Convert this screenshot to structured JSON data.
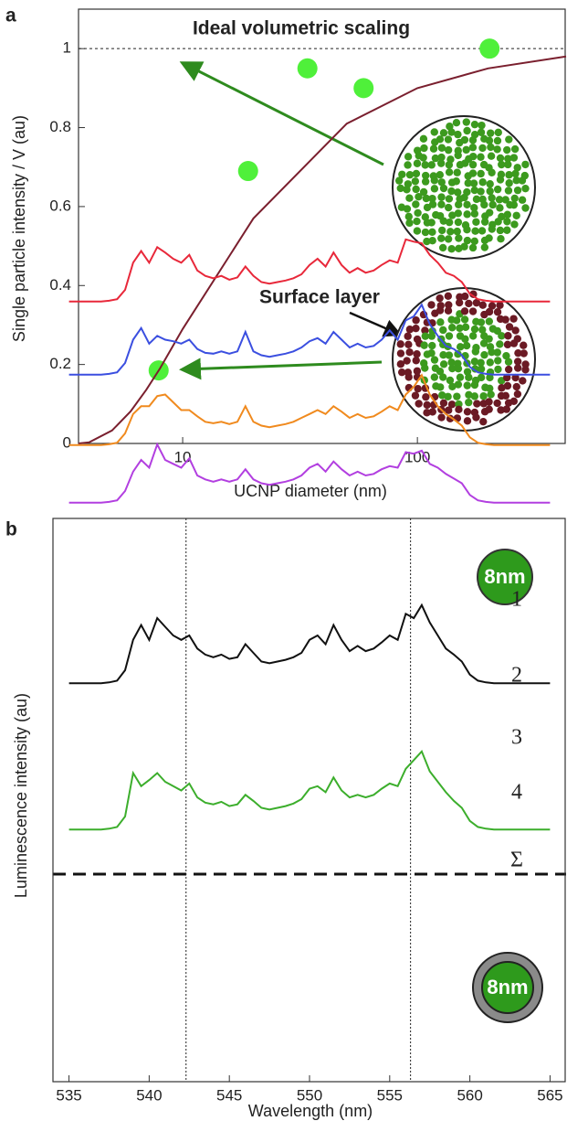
{
  "chart_data": [
    {
      "type": "scatter",
      "panel_label": "a",
      "x_label": "UCNP diameter (nm)",
      "y_label": "Single particle intensity / V (au)",
      "xlog": true,
      "xlim": [
        3.6,
        430
      ],
      "xticks": [
        10,
        100
      ],
      "ylim": [
        0,
        1.1
      ],
      "yticks": [
        0,
        0.2,
        0.4,
        0.6,
        0.8,
        1
      ],
      "reference_y": 1,
      "annotations": [
        "Ideal volumetric scaling",
        "Surface layer"
      ],
      "series": [
        {
          "type": "scatter",
          "color": "#4ff03a",
          "x": [
            7.9,
            19,
            34,
            59,
            203
          ],
          "values": [
            0.185,
            0.69,
            0.95,
            0.9,
            1.0
          ]
        },
        {
          "type": "line",
          "color": "#7a1f2e",
          "x": [
            3.6,
            4,
            5,
            6,
            7,
            8,
            10,
            20,
            50,
            100,
            200,
            430
          ],
          "values": [
            0,
            0.003,
            0.033,
            0.081,
            0.136,
            0.19,
            0.29,
            0.57,
            0.81,
            0.9,
            0.95,
            0.98
          ]
        }
      ]
    },
    {
      "type": "line",
      "panel_label": "b",
      "x_label": "Wavelength (nm)",
      "y_label": "Luminescence intensity (au)",
      "xlim": [
        534,
        566
      ],
      "xticks": [
        535,
        540,
        545,
        550,
        555,
        560,
        565
      ],
      "reference_x": [
        542.3,
        556.3
      ],
      "annotations": [
        "8nm",
        "8nm"
      ],
      "x": [
        535,
        535.5,
        536,
        536.5,
        537,
        537.5,
        538,
        538.5,
        539,
        539.5,
        540,
        540.5,
        541,
        541.5,
        542,
        542.5,
        543,
        543.5,
        544,
        544.5,
        545,
        545.5,
        546,
        546.5,
        547,
        547.5,
        548,
        548.5,
        549,
        549.5,
        550,
        550.5,
        551,
        551.5,
        552,
        552.5,
        553,
        553.5,
        554,
        554.5,
        555,
        555.5,
        556,
        556.5,
        557,
        557.5,
        558,
        558.5,
        559,
        559.5,
        560,
        560.5,
        561,
        561.5,
        562,
        562.5,
        563,
        563.5,
        564,
        564.5,
        565
      ],
      "series": [
        {
          "name": "1",
          "color": "#e8283a",
          "values": [
            0.05,
            0.05,
            0.05,
            0.05,
            0.05,
            0.06,
            0.08,
            0.2,
            0.55,
            0.7,
            0.55,
            0.75,
            0.68,
            0.6,
            0.55,
            0.65,
            0.45,
            0.38,
            0.35,
            0.38,
            0.33,
            0.36,
            0.5,
            0.38,
            0.3,
            0.28,
            0.3,
            0.32,
            0.35,
            0.4,
            0.52,
            0.6,
            0.5,
            0.68,
            0.52,
            0.42,
            0.48,
            0.42,
            0.45,
            0.52,
            0.58,
            0.55,
            0.85,
            0.82,
            0.8,
            0.65,
            0.55,
            0.42,
            0.38,
            0.3,
            0.15,
            0.08,
            0.06,
            0.05,
            0.05,
            0.05,
            0.05,
            0.05,
            0.05,
            0.05,
            0.05
          ]
        },
        {
          "name": "2",
          "color": "#3b4fe0",
          "values": [
            0.05,
            0.05,
            0.05,
            0.05,
            0.05,
            0.06,
            0.08,
            0.2,
            0.5,
            0.65,
            0.45,
            0.55,
            0.5,
            0.48,
            0.45,
            0.5,
            0.38,
            0.33,
            0.32,
            0.35,
            0.32,
            0.35,
            0.6,
            0.35,
            0.3,
            0.28,
            0.3,
            0.32,
            0.35,
            0.4,
            0.48,
            0.52,
            0.45,
            0.6,
            0.5,
            0.4,
            0.45,
            0.4,
            0.42,
            0.5,
            0.62,
            0.5,
            0.75,
            0.8,
            0.95,
            0.7,
            0.55,
            0.42,
            0.38,
            0.3,
            0.15,
            0.08,
            0.06,
            0.05,
            0.05,
            0.05,
            0.05,
            0.05,
            0.05,
            0.05,
            0.05
          ]
        },
        {
          "name": "3",
          "color": "#f08a1e",
          "values": [
            0.05,
            0.05,
            0.05,
            0.05,
            0.05,
            0.06,
            0.08,
            0.2,
            0.45,
            0.55,
            0.55,
            0.68,
            0.7,
            0.6,
            0.5,
            0.5,
            0.42,
            0.35,
            0.33,
            0.35,
            0.32,
            0.35,
            0.55,
            0.35,
            0.3,
            0.28,
            0.3,
            0.32,
            0.35,
            0.4,
            0.45,
            0.5,
            0.45,
            0.55,
            0.48,
            0.4,
            0.45,
            0.4,
            0.42,
            0.48,
            0.55,
            0.5,
            0.7,
            0.8,
            0.95,
            0.7,
            0.55,
            0.45,
            0.38,
            0.3,
            0.15,
            0.08,
            0.06,
            0.05,
            0.05,
            0.05,
            0.05,
            0.05,
            0.05,
            0.05,
            0.05
          ]
        },
        {
          "name": "4",
          "color": "#b23fe0",
          "values": [
            0.05,
            0.05,
            0.05,
            0.05,
            0.05,
            0.06,
            0.08,
            0.2,
            0.45,
            0.6,
            0.5,
            0.8,
            0.6,
            0.55,
            0.5,
            0.62,
            0.4,
            0.35,
            0.32,
            0.35,
            0.32,
            0.35,
            0.48,
            0.35,
            0.3,
            0.28,
            0.3,
            0.32,
            0.35,
            0.4,
            0.5,
            0.55,
            0.45,
            0.58,
            0.48,
            0.4,
            0.45,
            0.4,
            0.42,
            0.48,
            0.52,
            0.5,
            0.7,
            0.68,
            0.72,
            0.55,
            0.5,
            0.42,
            0.36,
            0.3,
            0.15,
            0.08,
            0.06,
            0.05,
            0.05,
            0.05,
            0.05,
            0.05,
            0.05,
            0.05,
            0.05
          ]
        },
        {
          "name": "Σ",
          "color": "#111111",
          "values": [
            0.05,
            0.05,
            0.05,
            0.05,
            0.05,
            0.06,
            0.08,
            0.2,
            0.55,
            0.72,
            0.55,
            0.8,
            0.7,
            0.6,
            0.55,
            0.6,
            0.45,
            0.38,
            0.35,
            0.38,
            0.33,
            0.35,
            0.5,
            0.4,
            0.3,
            0.28,
            0.3,
            0.32,
            0.35,
            0.4,
            0.55,
            0.6,
            0.5,
            0.72,
            0.55,
            0.42,
            0.48,
            0.42,
            0.45,
            0.52,
            0.6,
            0.55,
            0.85,
            0.8,
            0.95,
            0.75,
            0.6,
            0.45,
            0.38,
            0.3,
            0.15,
            0.08,
            0.06,
            0.05,
            0.05,
            0.05,
            0.05,
            0.05,
            0.05,
            0.05,
            0.05
          ]
        },
        {
          "color": "#3cae2c",
          "values": [
            0.05,
            0.05,
            0.05,
            0.05,
            0.05,
            0.06,
            0.08,
            0.2,
            0.7,
            0.55,
            0.62,
            0.7,
            0.6,
            0.55,
            0.5,
            0.58,
            0.42,
            0.36,
            0.34,
            0.37,
            0.32,
            0.34,
            0.45,
            0.38,
            0.3,
            0.28,
            0.3,
            0.32,
            0.35,
            0.4,
            0.52,
            0.55,
            0.48,
            0.65,
            0.5,
            0.42,
            0.45,
            0.42,
            0.45,
            0.52,
            0.58,
            0.55,
            0.75,
            0.85,
            0.95,
            0.72,
            0.6,
            0.48,
            0.38,
            0.3,
            0.15,
            0.08,
            0.06,
            0.05,
            0.05,
            0.05,
            0.05,
            0.05,
            0.05,
            0.05,
            0.05
          ]
        }
      ]
    }
  ]
}
